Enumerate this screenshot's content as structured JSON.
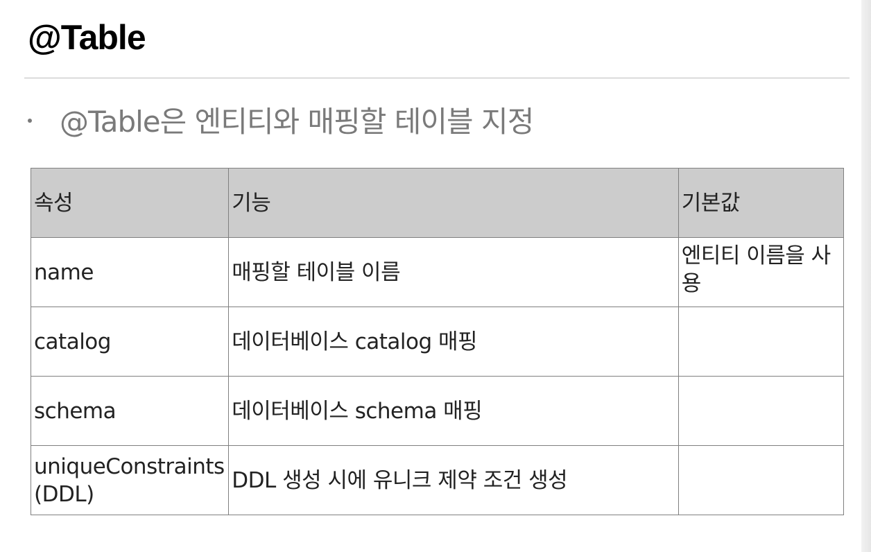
{
  "page": {
    "title": "@Table",
    "bullet": "@Table은 엔티티와 매핑할 테이블 지정"
  },
  "table": {
    "headers": [
      "속성",
      "기능",
      "기본값"
    ],
    "rows": [
      {
        "attr": "name",
        "func": "매핑할 테이블 이름",
        "default": "엔티티 이름을 사용"
      },
      {
        "attr": "catalog",
        "func": "데이터베이스 catalog 매핑",
        "default": ""
      },
      {
        "attr": "schema",
        "func": "데이터베이스 schema 매핑",
        "default": ""
      },
      {
        "attr": "uniqueConstraints (DDL)",
        "func": "DDL 생성 시에 유니크 제약 조건 생성",
        "default": ""
      }
    ]
  }
}
